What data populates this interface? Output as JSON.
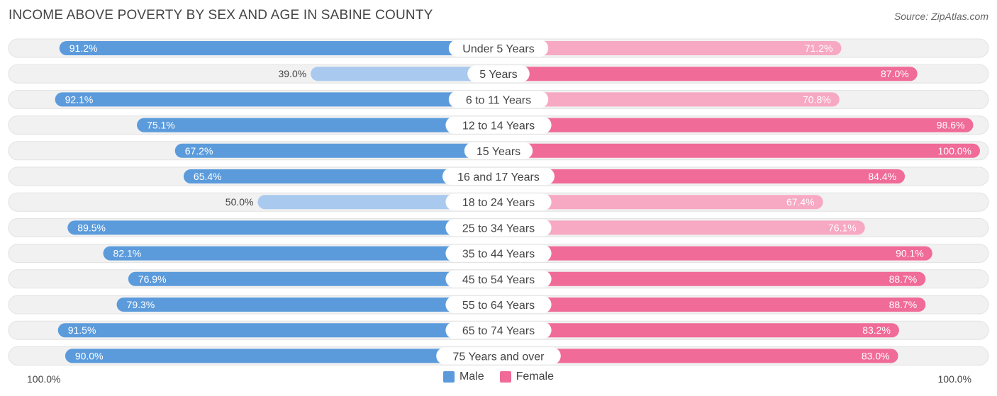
{
  "title": "INCOME ABOVE POVERTY BY SEX AND AGE IN SABINE COUNTY",
  "source": "Source: ZipAtlas.com",
  "colors": {
    "male_strong": "#5b9bdc",
    "male_light": "#a9c9ee",
    "female_strong": "#f06b97",
    "female_light": "#f7a8c2",
    "track": "#f1f1f1"
  },
  "legend": {
    "male": "Male",
    "female": "Female"
  },
  "axis": {
    "left": "100.0%",
    "right": "100.0%"
  },
  "chart_data": {
    "type": "bar",
    "orientation": "horizontal-diverging",
    "title": "INCOME ABOVE POVERTY BY SEX AND AGE IN SABINE COUNTY",
    "xlim": [
      0,
      100
    ],
    "categories": [
      "Under 5 Years",
      "5 Years",
      "6 to 11 Years",
      "12 to 14 Years",
      "15 Years",
      "16 and 17 Years",
      "18 to 24 Years",
      "25 to 34 Years",
      "35 to 44 Years",
      "45 to 54 Years",
      "55 to 64 Years",
      "65 to 74 Years",
      "75 Years and over"
    ],
    "series": [
      {
        "name": "Male",
        "values": [
          91.2,
          39.0,
          92.1,
          75.1,
          67.2,
          65.4,
          50.0,
          89.5,
          82.1,
          76.9,
          79.3,
          91.5,
          90.0
        ],
        "labels": [
          "91.2%",
          "39.0%",
          "92.1%",
          "75.1%",
          "67.2%",
          "65.4%",
          "50.0%",
          "89.5%",
          "82.1%",
          "76.9%",
          "79.3%",
          "91.5%",
          "90.0%"
        ]
      },
      {
        "name": "Female",
        "values": [
          71.2,
          87.0,
          70.8,
          98.6,
          100.0,
          84.4,
          67.4,
          76.1,
          90.1,
          88.7,
          88.7,
          83.2,
          83.0
        ],
        "labels": [
          "71.2%",
          "87.0%",
          "70.8%",
          "98.6%",
          "100.0%",
          "84.4%",
          "67.4%",
          "76.1%",
          "90.1%",
          "88.7%",
          "88.7%",
          "83.2%",
          "83.0%"
        ]
      }
    ],
    "legend_position": "bottom-center",
    "grid": false
  }
}
